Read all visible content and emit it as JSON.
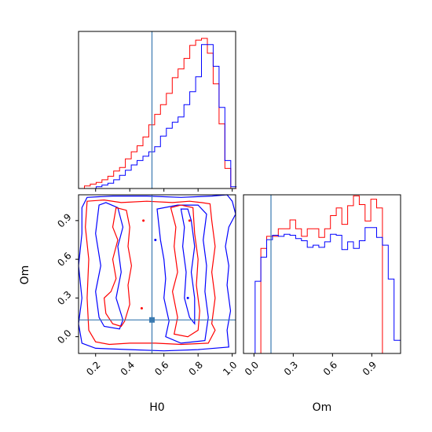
{
  "chart_data": {
    "type": "corner",
    "parameters": [
      "H0",
      "Om"
    ],
    "truth": {
      "H0": 0.53,
      "Om": 0.13,
      "line_color": "#3a7ab0"
    },
    "series": [
      {
        "color": "#ff0000"
      },
      {
        "color": "#0000ff"
      }
    ],
    "panels": [
      {
        "id": "h0-hist",
        "type": "histogram",
        "param": "H0",
        "xlim": [
          0.1,
          1.02
        ],
        "bin_edges": [
          0.1,
          0.1343,
          0.1686,
          0.2029,
          0.2371,
          0.2714,
          0.3057,
          0.34,
          0.3743,
          0.4086,
          0.4429,
          0.4771,
          0.5114,
          0.5457,
          0.58,
          0.6143,
          0.6486,
          0.6829,
          0.7171,
          0.7514,
          0.7857,
          0.82,
          0.8543,
          0.8886,
          0.9229,
          0.9571,
          0.9914,
          1.0257
        ],
        "ymax": 180,
        "red": [
          0,
          3,
          5,
          7,
          10,
          14,
          20,
          24,
          34,
          42,
          49,
          59,
          73,
          85,
          96,
          109,
          127,
          137,
          149,
          164,
          170,
          172,
          155,
          120,
          74,
          23,
          0
        ],
        "blue": [
          0,
          0,
          0,
          2,
          4,
          6,
          10,
          15,
          21,
          27,
          32,
          37,
          42,
          48,
          60,
          69,
          76,
          82,
          96,
          111,
          128,
          165,
          165,
          140,
          93,
          32,
          2
        ]
      },
      {
        "id": "om-hist",
        "type": "histogram",
        "param": "Om",
        "xlim": [
          -0.08,
          1.12
        ],
        "bin_edges": [
          -0.08,
          -0.0357,
          0.0086,
          0.0529,
          0.0971,
          0.1414,
          0.1857,
          0.23,
          0.2743,
          0.3186,
          0.3629,
          0.4071,
          0.4514,
          0.4957,
          0.54,
          0.5843,
          0.6286,
          0.6714,
          0.7157,
          0.76,
          0.8043,
          0.8486,
          0.8929,
          0.9371,
          0.9814,
          1.0257,
          1.07,
          1.12
        ],
        "ymax": 145,
        "red": [
          0,
          0,
          0,
          96,
          107,
          107,
          114,
          114,
          122,
          114,
          107,
          114,
          114,
          106,
          114,
          126,
          133,
          118,
          135,
          144,
          136,
          121,
          141,
          133,
          0,
          0,
          0
        ],
        "blue": [
          0,
          0,
          66,
          88,
          104,
          108,
          107,
          109,
          108,
          105,
          103,
          97,
          99,
          97,
          102,
          109,
          108,
          95,
          102,
          96,
          103,
          115,
          115,
          106,
          99,
          68,
          12
        ]
      },
      {
        "id": "h0-om-2d",
        "type": "contour",
        "xparam": "H0",
        "yparam": "Om",
        "xlim": [
          0.1,
          1.02
        ],
        "ylim": [
          -0.13,
          1.1
        ],
        "xticks": [
          "0.2",
          "0.4",
          "0.6",
          "0.8",
          "1.0"
        ],
        "yticks": [
          "0.0",
          "0.3",
          "0.6",
          "0.9"
        ],
        "xtick_values": [
          0.2,
          0.4,
          0.6,
          0.8,
          1.0
        ],
        "ytick_values": [
          0.0,
          0.3,
          0.6,
          0.9
        ],
        "xlabel": "H0",
        "ylabel": "Om",
        "red_contours": [
          [
            [
              0.15,
              1.05
            ],
            [
              0.25,
              1.06
            ],
            [
              0.35,
              1.04
            ],
            [
              0.5,
              1.05
            ],
            [
              0.65,
              1.04
            ],
            [
              0.75,
              1.05
            ],
            [
              0.82,
              1.04
            ],
            [
              0.87,
              1.03
            ],
            [
              0.88,
              0.9
            ],
            [
              0.9,
              0.7
            ],
            [
              0.88,
              0.5
            ],
            [
              0.9,
              0.3
            ],
            [
              0.88,
              0.1
            ],
            [
              0.9,
              0.05
            ],
            [
              0.86,
              -0.05
            ],
            [
              0.7,
              -0.06
            ],
            [
              0.55,
              -0.05
            ],
            [
              0.4,
              -0.05
            ],
            [
              0.28,
              -0.06
            ],
            [
              0.2,
              -0.04
            ],
            [
              0.16,
              0.05
            ],
            [
              0.15,
              0.3
            ],
            [
              0.16,
              0.6
            ],
            [
              0.14,
              0.85
            ],
            [
              0.15,
              1.05
            ]
          ],
          [
            [
              0.32,
              1.0
            ],
            [
              0.3,
              0.85
            ],
            [
              0.33,
              0.75
            ],
            [
              0.3,
              0.6
            ],
            [
              0.32,
              0.45
            ],
            [
              0.29,
              0.35
            ],
            [
              0.25,
              0.3
            ],
            [
              0.26,
              0.18
            ],
            [
              0.3,
              0.1
            ],
            [
              0.35,
              0.08
            ],
            [
              0.37,
              0.12
            ],
            [
              0.4,
              0.25
            ],
            [
              0.39,
              0.4
            ],
            [
              0.41,
              0.55
            ],
            [
              0.39,
              0.7
            ],
            [
              0.4,
              0.85
            ],
            [
              0.38,
              0.98
            ],
            [
              0.32,
              1.0
            ]
          ],
          [
            [
              0.64,
              1.0
            ],
            [
              0.67,
              0.85
            ],
            [
              0.66,
              0.7
            ],
            [
              0.68,
              0.5
            ],
            [
              0.65,
              0.35
            ],
            [
              0.68,
              0.15
            ],
            [
              0.66,
              0.02
            ],
            [
              0.74,
              0.0
            ],
            [
              0.8,
              0.05
            ],
            [
              0.81,
              0.2
            ],
            [
              0.79,
              0.4
            ],
            [
              0.8,
              0.6
            ],
            [
              0.78,
              0.8
            ],
            [
              0.77,
              1.0
            ],
            [
              0.7,
              1.02
            ],
            [
              0.64,
              1.0
            ]
          ]
        ],
        "blue_contours": [
          [
            [
              0.12,
              1.0
            ],
            [
              0.15,
              1.08
            ],
            [
              0.3,
              1.09
            ],
            [
              0.5,
              1.09
            ],
            [
              0.7,
              1.08
            ],
            [
              0.88,
              1.09
            ],
            [
              0.97,
              1.1
            ],
            [
              1.0,
              1.05
            ],
            [
              1.02,
              0.95
            ],
            [
              0.98,
              0.85
            ],
            [
              0.96,
              0.7
            ],
            [
              0.98,
              0.55
            ],
            [
              0.97,
              0.4
            ],
            [
              0.99,
              0.2
            ],
            [
              0.97,
              0.05
            ],
            [
              0.98,
              -0.08
            ],
            [
              0.8,
              -0.1
            ],
            [
              0.6,
              -0.11
            ],
            [
              0.4,
              -0.1
            ],
            [
              0.2,
              -0.09
            ],
            [
              0.12,
              -0.05
            ],
            [
              0.1,
              0.1
            ],
            [
              0.12,
              0.3
            ],
            [
              0.1,
              0.55
            ],
            [
              0.12,
              0.8
            ],
            [
              0.12,
              1.0
            ]
          ],
          [
            [
              0.22,
              1.02
            ],
            [
              0.2,
              0.8
            ],
            [
              0.23,
              0.55
            ],
            [
              0.2,
              0.35
            ],
            [
              0.22,
              0.15
            ],
            [
              0.25,
              0.08
            ],
            [
              0.34,
              0.06
            ],
            [
              0.36,
              0.13
            ],
            [
              0.32,
              0.3
            ],
            [
              0.35,
              0.5
            ],
            [
              0.33,
              0.7
            ],
            [
              0.36,
              0.85
            ],
            [
              0.33,
              1.0
            ],
            [
              0.26,
              1.04
            ],
            [
              0.22,
              1.02
            ]
          ],
          [
            [
              0.56,
              0.99
            ],
            [
              0.58,
              0.75
            ],
            [
              0.6,
              0.6
            ],
            [
              0.61,
              0.45
            ],
            [
              0.6,
              0.3
            ],
            [
              0.63,
              0.12
            ],
            [
              0.61,
              0.0
            ],
            [
              0.7,
              -0.05
            ],
            [
              0.84,
              -0.03
            ],
            [
              0.86,
              0.15
            ],
            [
              0.84,
              0.35
            ],
            [
              0.85,
              0.55
            ],
            [
              0.83,
              0.75
            ],
            [
              0.85,
              0.95
            ],
            [
              0.8,
              1.02
            ],
            [
              0.68,
              1.02
            ],
            [
              0.56,
              0.99
            ]
          ],
          [
            [
              0.7,
              0.99
            ],
            [
              0.72,
              0.85
            ],
            [
              0.71,
              0.7
            ],
            [
              0.73,
              0.5
            ],
            [
              0.72,
              0.3
            ],
            [
              0.75,
              0.15
            ],
            [
              0.78,
              0.1
            ],
            [
              0.78,
              0.3
            ],
            [
              0.76,
              0.5
            ],
            [
              0.78,
              0.7
            ],
            [
              0.76,
              0.9
            ],
            [
              0.74,
              0.99
            ],
            [
              0.7,
              0.99
            ]
          ]
        ],
        "red_dots": [
          [
            0.48,
            0.9
          ],
          [
            0.47,
            0.22
          ],
          [
            0.75,
            0.9
          ]
        ],
        "blue_dots": [
          [
            0.55,
            0.75
          ],
          [
            0.74,
            0.3
          ]
        ]
      }
    ]
  }
}
